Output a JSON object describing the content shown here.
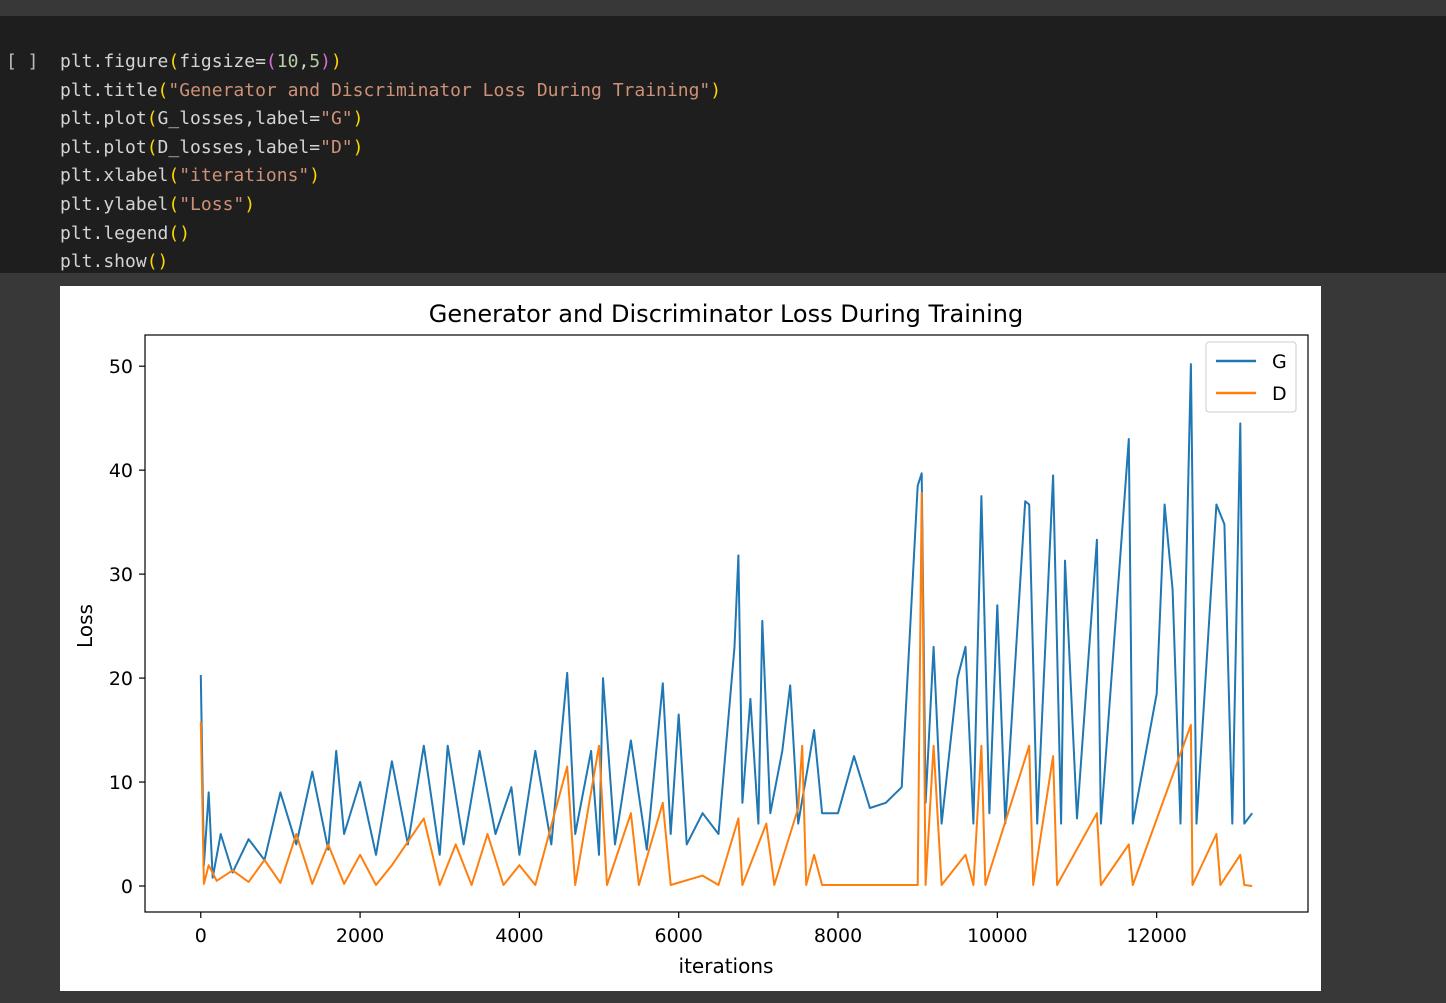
{
  "cell": {
    "run_indicator": "[ ]",
    "code_lines": [
      "plt.figure(figsize=(10,5))",
      "plt.title(\"Generator and Discriminator Loss During Training\")",
      "plt.plot(G_losses,label=\"G\")",
      "plt.plot(D_losses,label=\"D\")",
      "plt.xlabel(\"iterations\")",
      "plt.ylabel(\"Loss\")",
      "plt.legend()",
      "plt.show()"
    ]
  },
  "chart_data": {
    "type": "line",
    "title": "Generator and Discriminator Loss During Training",
    "xlabel": "iterations",
    "ylabel": "Loss",
    "xlim": [
      -700,
      13900
    ],
    "ylim": [
      -2.5,
      53
    ],
    "xticks": [
      0,
      2000,
      4000,
      6000,
      8000,
      10000,
      12000
    ],
    "yticks": [
      0,
      10,
      20,
      30,
      40,
      50
    ],
    "grid": false,
    "legend_position": "top-right",
    "series": [
      {
        "name": "G",
        "color": "#1f77b4",
        "points": [
          [
            0,
            20.3
          ],
          [
            40,
            2.0
          ],
          [
            100,
            9.0
          ],
          [
            150,
            0.8
          ],
          [
            250,
            5.0
          ],
          [
            400,
            1.3
          ],
          [
            600,
            4.5
          ],
          [
            800,
            2.5
          ],
          [
            1000,
            9.0
          ],
          [
            1200,
            4.0
          ],
          [
            1400,
            11.0
          ],
          [
            1600,
            3.5
          ],
          [
            1700,
            13.0
          ],
          [
            1800,
            5.0
          ],
          [
            2000,
            10.0
          ],
          [
            2200,
            3.0
          ],
          [
            2400,
            12.0
          ],
          [
            2600,
            4.0
          ],
          [
            2800,
            13.5
          ],
          [
            3000,
            3.0
          ],
          [
            3100,
            13.5
          ],
          [
            3300,
            4.0
          ],
          [
            3500,
            13.0
          ],
          [
            3700,
            5.0
          ],
          [
            3900,
            9.5
          ],
          [
            4000,
            3.0
          ],
          [
            4200,
            13.0
          ],
          [
            4400,
            4.0
          ],
          [
            4600,
            20.5
          ],
          [
            4700,
            5.0
          ],
          [
            4900,
            13.0
          ],
          [
            5000,
            3.0
          ],
          [
            5050,
            20.0
          ],
          [
            5200,
            4.0
          ],
          [
            5400,
            14.0
          ],
          [
            5600,
            3.5
          ],
          [
            5800,
            19.5
          ],
          [
            5900,
            5.0
          ],
          [
            6000,
            16.5
          ],
          [
            6100,
            4.0
          ],
          [
            6300,
            7.0
          ],
          [
            6500,
            5.0
          ],
          [
            6700,
            23.0
          ],
          [
            6750,
            31.8
          ],
          [
            6800,
            8.0
          ],
          [
            6900,
            18.0
          ],
          [
            7000,
            6.0
          ],
          [
            7050,
            25.5
          ],
          [
            7150,
            7.0
          ],
          [
            7300,
            13.0
          ],
          [
            7400,
            19.3
          ],
          [
            7500,
            6.0
          ],
          [
            7700,
            15.0
          ],
          [
            7800,
            7.0
          ],
          [
            8000,
            7.0
          ],
          [
            8200,
            12.5
          ],
          [
            8400,
            7.5
          ],
          [
            8600,
            8.0
          ],
          [
            8800,
            9.5
          ],
          [
            9000,
            38.5
          ],
          [
            9050,
            39.7
          ],
          [
            9100,
            8.0
          ],
          [
            9200,
            23.0
          ],
          [
            9300,
            6.0
          ],
          [
            9500,
            20.0
          ],
          [
            9600,
            23.0
          ],
          [
            9700,
            6.0
          ],
          [
            9800,
            37.5
          ],
          [
            9900,
            7.0
          ],
          [
            10000,
            27.0
          ],
          [
            10100,
            6.0
          ],
          [
            10350,
            37.0
          ],
          [
            10400,
            36.7
          ],
          [
            10500,
            6.0
          ],
          [
            10700,
            39.5
          ],
          [
            10800,
            6.0
          ],
          [
            10850,
            31.3
          ],
          [
            11000,
            6.5
          ],
          [
            11250,
            33.3
          ],
          [
            11300,
            6.0
          ],
          [
            11650,
            43.0
          ],
          [
            11700,
            6.0
          ],
          [
            12000,
            18.5
          ],
          [
            12100,
            36.7
          ],
          [
            12200,
            28.5
          ],
          [
            12300,
            6.0
          ],
          [
            12430,
            50.2
          ],
          [
            12500,
            6.0
          ],
          [
            12750,
            36.7
          ],
          [
            12850,
            34.8
          ],
          [
            12950,
            6.0
          ],
          [
            13050,
            44.5
          ],
          [
            13100,
            6.0
          ],
          [
            13200,
            7.0
          ]
        ]
      },
      {
        "name": "D",
        "color": "#ff7f0e",
        "points": [
          [
            0,
            15.8
          ],
          [
            40,
            0.2
          ],
          [
            100,
            2.0
          ],
          [
            200,
            0.5
          ],
          [
            400,
            1.5
          ],
          [
            600,
            0.4
          ],
          [
            800,
            2.5
          ],
          [
            1000,
            0.3
          ],
          [
            1200,
            5.0
          ],
          [
            1400,
            0.2
          ],
          [
            1600,
            4.0
          ],
          [
            1800,
            0.2
          ],
          [
            2000,
            3.0
          ],
          [
            2200,
            0.1
          ],
          [
            2400,
            2.0
          ],
          [
            2800,
            6.5
          ],
          [
            3000,
            0.1
          ],
          [
            3200,
            4.0
          ],
          [
            3400,
            0.1
          ],
          [
            3600,
            5.0
          ],
          [
            3800,
            0.1
          ],
          [
            4000,
            2.0
          ],
          [
            4200,
            0.1
          ],
          [
            4600,
            11.5
          ],
          [
            4700,
            0.1
          ],
          [
            5000,
            13.5
          ],
          [
            5100,
            0.1
          ],
          [
            5400,
            7.0
          ],
          [
            5500,
            0.1
          ],
          [
            5800,
            8.0
          ],
          [
            5900,
            0.1
          ],
          [
            6300,
            1.0
          ],
          [
            6500,
            0.1
          ],
          [
            6750,
            6.5
          ],
          [
            6800,
            0.1
          ],
          [
            7100,
            6.0
          ],
          [
            7200,
            0.1
          ],
          [
            7500,
            7.5
          ],
          [
            7550,
            13.5
          ],
          [
            7600,
            0.1
          ],
          [
            7700,
            3.0
          ],
          [
            7800,
            0.1
          ],
          [
            9000,
            0.1
          ],
          [
            9050,
            37.8
          ],
          [
            9100,
            0.1
          ],
          [
            9200,
            13.5
          ],
          [
            9300,
            0.1
          ],
          [
            9600,
            3.0
          ],
          [
            9700,
            0.1
          ],
          [
            9800,
            13.5
          ],
          [
            9850,
            0.1
          ],
          [
            10400,
            13.5
          ],
          [
            10450,
            0.1
          ],
          [
            10700,
            12.5
          ],
          [
            10750,
            0.1
          ],
          [
            11250,
            7.0
          ],
          [
            11300,
            0.1
          ],
          [
            11650,
            4.0
          ],
          [
            11700,
            0.1
          ],
          [
            12430,
            15.5
          ],
          [
            12450,
            0.1
          ],
          [
            12750,
            5.0
          ],
          [
            12800,
            0.1
          ],
          [
            13050,
            3.0
          ],
          [
            13100,
            0.1
          ],
          [
            13200,
            0.0
          ]
        ]
      }
    ]
  }
}
